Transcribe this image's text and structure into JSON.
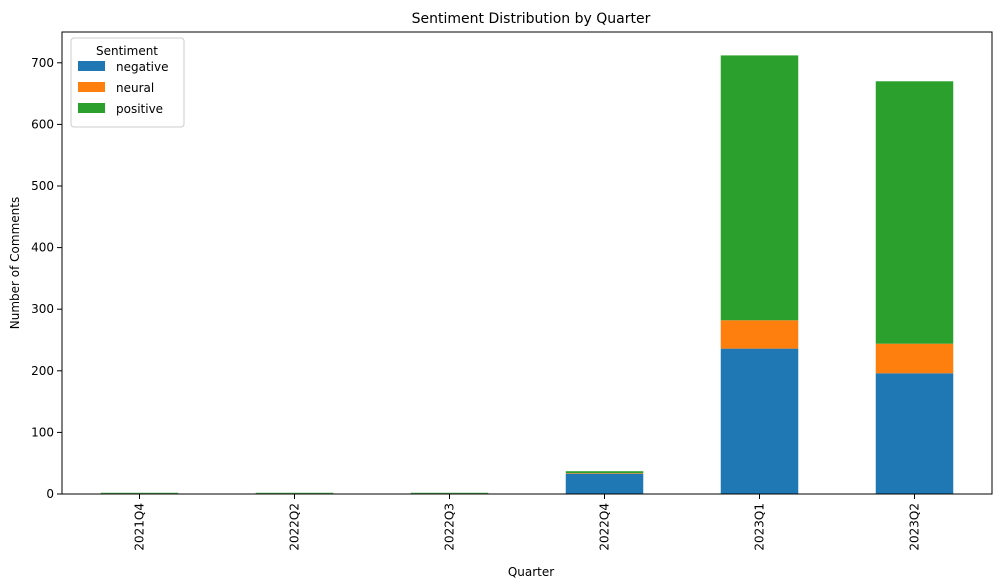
{
  "chart_data": {
    "type": "bar",
    "stacked": true,
    "title": "Sentiment Distribution by Quarter",
    "xlabel": "Quarter",
    "ylabel": "Number of Comments",
    "ylim": [
      0,
      750
    ],
    "yticks": [
      0,
      100,
      200,
      300,
      400,
      500,
      600,
      700
    ],
    "grid": false,
    "legend": {
      "title": "Sentiment",
      "placement": "top-left"
    },
    "categories": [
      "2021Q4",
      "2022Q2",
      "2022Q3",
      "2022Q4",
      "2023Q1",
      "2023Q2"
    ],
    "series": [
      {
        "name": "negative",
        "color": "#1f77b4",
        "values": [
          1,
          1,
          1,
          33,
          236,
          196
        ]
      },
      {
        "name": "neural",
        "color": "#ff7f0e",
        "values": [
          0,
          0,
          0,
          1,
          46,
          48
        ]
      },
      {
        "name": "positive",
        "color": "#2ca02c",
        "values": [
          1,
          1,
          1,
          3,
          430,
          426
        ]
      }
    ]
  }
}
